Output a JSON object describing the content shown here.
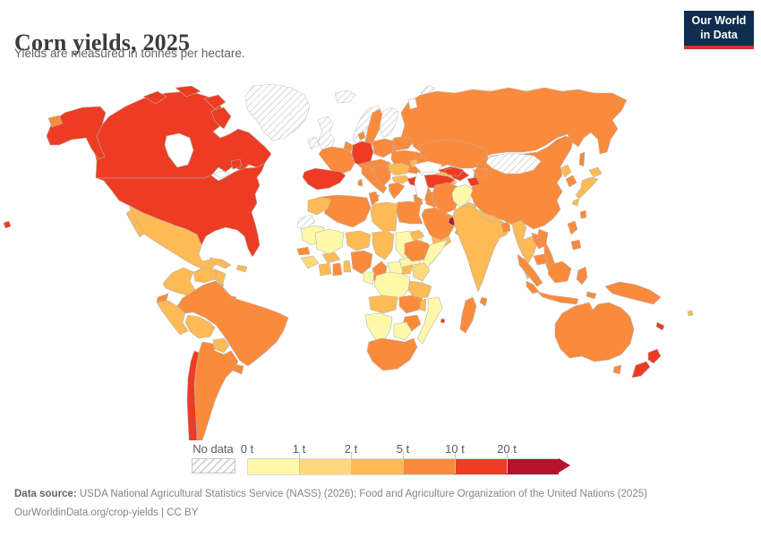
{
  "header": {
    "title": "Corn yields, 2025",
    "subtitle": "Yields are measured in tonnes per hectare."
  },
  "logo": {
    "line1": "Our World",
    "line2": "in Data",
    "bg": "#0f2d4e",
    "accent": "#cf3529"
  },
  "footer": {
    "source_label": "Data source:",
    "source_text": " USDA National Agricultural Statistics Service (NASS) (2026); Food and Agriculture Organization of the United Nations (2025)",
    "license": "OurWorldinData.org/crop-yields | CC BY"
  },
  "chart_data": {
    "type": "choropleth_map",
    "title": "Corn yields, 2025",
    "unit": "tonnes per hectare",
    "legend": {
      "no_data_label": "No data",
      "ticks": [
        "0 t",
        "1 t",
        "2 t",
        "5 t",
        "10 t",
        "20 t"
      ],
      "bin_order": [
        "0-1",
        "1-2",
        "2-5",
        "5-10",
        "10-20",
        "20+"
      ],
      "arrow_at_end": true
    },
    "palette": {
      "0-1": "#fef9a9",
      "1-2": "#fdd87c",
      "2-5": "#fdba55",
      "5-10": "#fb8b3c",
      "10-20": "#ed3c23",
      "20+": "#b5142c",
      "border": "#b3b3b3",
      "no_data_hatch": "#d2d2d2"
    },
    "regions": {
      "usa": "10-20",
      "canada": "10-20",
      "greenland": "no-data",
      "mexico": "2-5",
      "guatemala": "2-5",
      "honduras": "5-10",
      "nicaragua": "2-5",
      "costa-rica-panama": "5-10",
      "cuba": "2-5",
      "hispaniola": "2-5",
      "colombia": "2-5",
      "venezuela": "2-5",
      "guyanas": "2-5",
      "ecuador": "5-10",
      "peru": "2-5",
      "brazil": "5-10",
      "bolivia": "2-5",
      "paraguay": "2-5",
      "uruguay": "5-10",
      "argentina": "5-10",
      "chile": "10-20",
      "comoros": "10-20",
      "iceland": "no-data",
      "united-kingdom": "no-data",
      "ireland": "no-data",
      "norway": "no-data",
      "sweden": "5-10",
      "finland": "no-data",
      "svalbard": "no-data",
      "denmark": "5-10",
      "baltics": "5-10",
      "germany": "10-20",
      "benelux": "5-10",
      "france": "5-10",
      "spain": "10-20",
      "italy": "5-10",
      "central-europe": "5-10",
      "poland": "5-10",
      "belarus": "5-10",
      "ukraine": "5-10",
      "romania": "2-5",
      "bulgaria": "2-5",
      "balkans": "5-10",
      "greece": "5-10",
      "moldova": "2-5",
      "turkey": "10-20",
      "caucasus": "10-20",
      "syria": "5-10",
      "levant": "5-10",
      "iraq": "5-10",
      "iran": "5-10",
      "saudi-arabia": "5-10",
      "uae-qatar": "20+",
      "oman": "5-10",
      "yemen": "2-5",
      "russia": "5-10",
      "kazakhstan": "5-10",
      "uzbekistan": "10-20",
      "turkmenistan": "2-5",
      "tajikistan": "10-20",
      "kyrgyzstan": "5-10",
      "afghanistan": "0-1",
      "pakistan": "2-5",
      "mongolia": "no-data",
      "china": "5-10",
      "india": "2-5",
      "nepal": "2-5",
      "bangladesh": "5-10",
      "sri-lanka": "5-10",
      "myanmar": "2-5",
      "thailand": "2-5",
      "laos": "5-10",
      "cambodia": "5-10",
      "vietnam": "5-10",
      "malaysia": "5-10",
      "indonesia": "5-10",
      "philippines": "5-10",
      "taiwan": "5-10",
      "north-korea": "2-5",
      "south-korea": "5-10",
      "japan": "2-5",
      "morocco": "2-5",
      "western-sahara": "no-data",
      "algeria": "5-10",
      "tunisia": "5-10",
      "libya": "2-5",
      "egypt": "5-10",
      "mauritania": "0-1",
      "mali": "0-1",
      "senegal": "5-10",
      "guinea": "1-2",
      "ivory-coast": "2-5",
      "ghana": "5-10",
      "benin": "2-5",
      "burkina-faso": "2-5",
      "niger": "2-5",
      "nigeria": "5-10",
      "chad": "2-5",
      "cameroon": "5-10",
      "central-african-republic": "0-1",
      "sudan": "0-1",
      "south-sudan": "0-1",
      "eritrea": "2-5",
      "ethiopia": "5-10",
      "somalia": "0-1",
      "kenya": "1-2",
      "uganda": "2-5",
      "drc": "0-1",
      "congo-gabon": "0-1",
      "tanzania": "2-5",
      "angola": "2-5",
      "zambia": "5-10",
      "malawi": "2-5",
      "mozambique": "0-1",
      "zimbabwe": "5-10",
      "botswana": "0-1",
      "namibia": "0-1",
      "south-africa": "5-10",
      "madagascar": "5-10",
      "australia": "5-10",
      "new-guinea": "5-10",
      "new-zealand": "10-20",
      "new-caledonia": "10-20",
      "fiji": "2-5"
    }
  }
}
